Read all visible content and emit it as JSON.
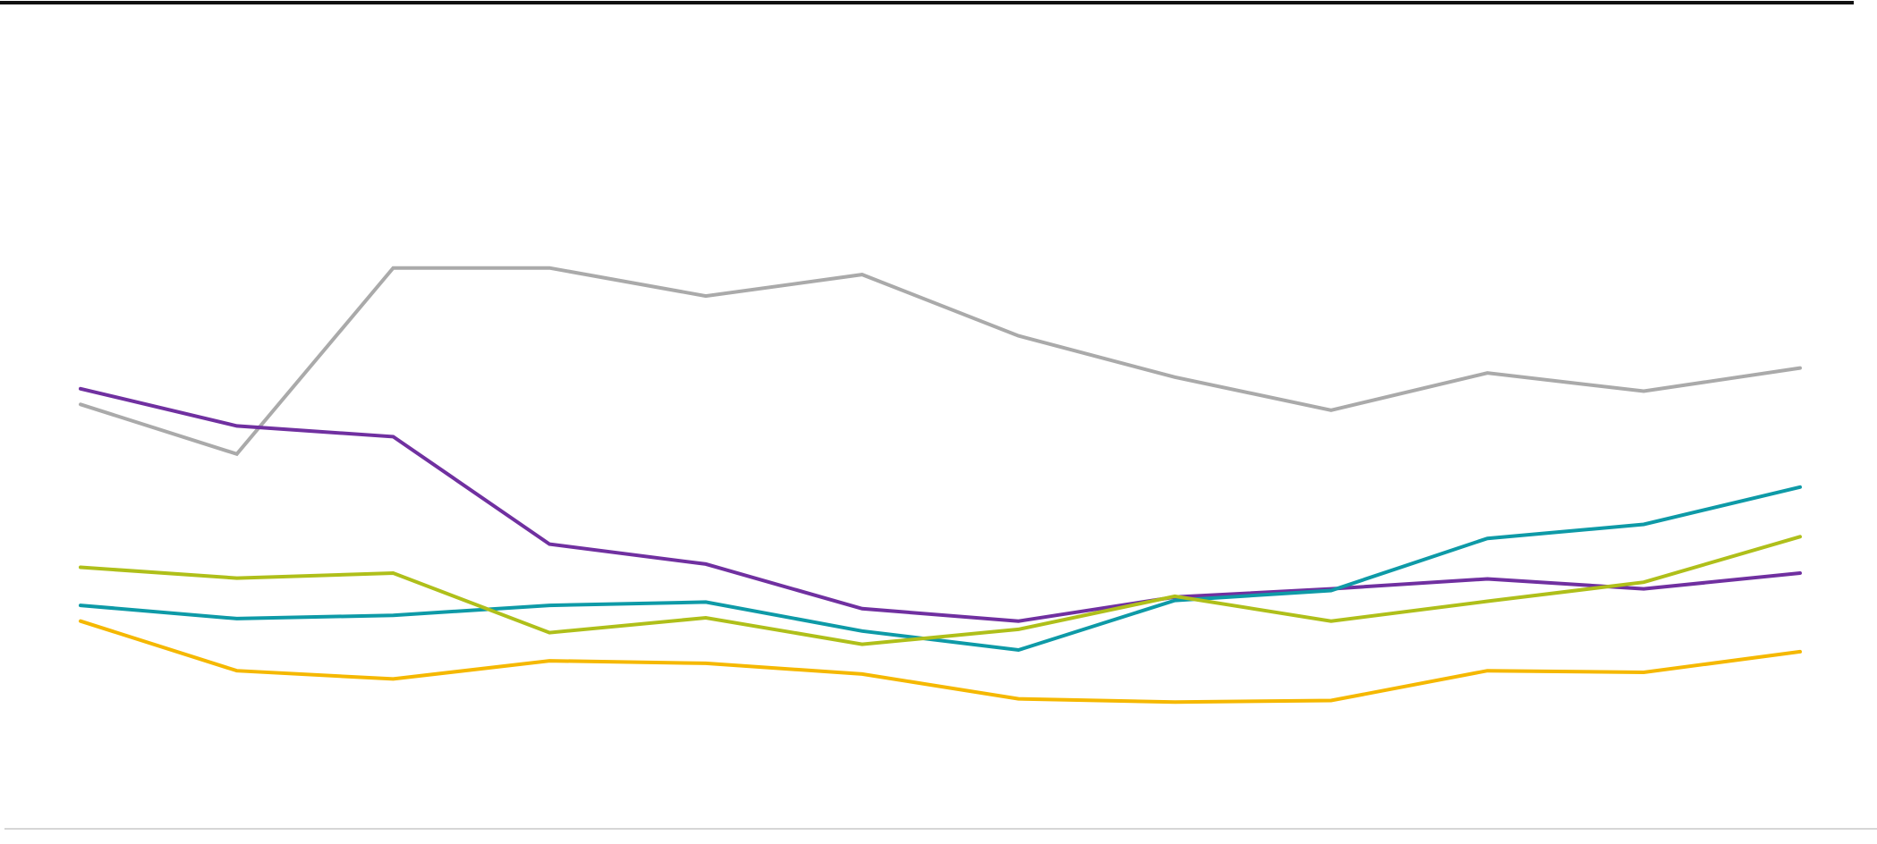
{
  "chart_data": {
    "type": "line",
    "x": [
      1,
      2,
      3,
      4,
      5,
      6,
      7,
      8,
      9,
      10,
      11,
      12
    ],
    "ylim": [
      0,
      100
    ],
    "grid": false,
    "legend": "none",
    "series": [
      {
        "color": "#aaaaaa",
        "values": [
          51.1,
          45.1,
          67.6,
          67.6,
          64.2,
          66.8,
          59.4,
          54.4,
          50.4,
          54.9,
          52.7,
          55.5
        ]
      },
      {
        "color": "#7030a0",
        "values": [
          53.0,
          48.5,
          47.2,
          34.2,
          31.8,
          26.4,
          24.9,
          27.8,
          28.8,
          30.0,
          28.8,
          30.7
        ]
      },
      {
        "color": "#0e9aa7",
        "values": [
          26.8,
          25.2,
          25.6,
          26.8,
          27.2,
          23.7,
          21.4,
          27.4,
          28.6,
          34.9,
          36.6,
          41.1
        ]
      },
      {
        "color": "#afbf1a",
        "values": [
          31.4,
          30.1,
          30.7,
          23.5,
          25.3,
          22.1,
          23.9,
          27.9,
          24.9,
          27.3,
          29.6,
          35.1
        ]
      },
      {
        "color": "#f5b800",
        "values": [
          24.9,
          18.9,
          17.9,
          20.1,
          19.8,
          18.5,
          15.5,
          15.1,
          15.3,
          18.9,
          18.7,
          21.2
        ]
      }
    ]
  }
}
